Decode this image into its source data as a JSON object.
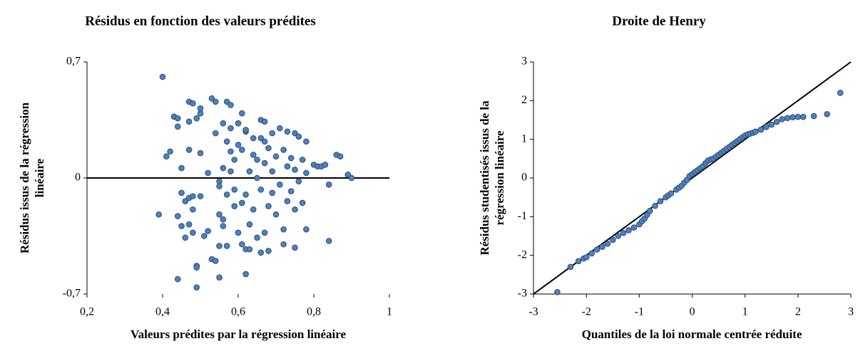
{
  "chart_data": [
    {
      "type": "scatter",
      "title": "Résidus en fonction des valeurs prédites",
      "xlabel": "Valeurs prédites par la régression linéaire",
      "ylabel": "Résidus issus de la régression linéaire",
      "color": "#4f81bd",
      "xlim": [
        0.2,
        1
      ],
      "ylim": [
        -0.7,
        0.7
      ],
      "xticks": [
        {
          "value": 0.2,
          "label": "0,2"
        },
        {
          "value": 0.4,
          "label": "0,4"
        },
        {
          "value": 0.6,
          "label": "0,6"
        },
        {
          "value": 0.8,
          "label": "0,8"
        },
        1
      ],
      "yticks": [
        {
          "value": -0.7,
          "label": "-0,7"
        },
        0,
        {
          "value": 0.7,
          "label": "0,7"
        }
      ],
      "x": [
        0.4,
        0.39,
        0.41,
        0.42,
        0.43,
        0.44,
        0.44,
        0.45,
        0.45,
        0.44,
        0.45,
        0.46,
        0.46,
        0.47,
        0.47,
        0.47,
        0.47,
        0.47,
        0.48,
        0.48,
        0.48,
        0.48,
        0.49,
        0.49,
        0.49,
        0.49,
        0.44,
        0.5,
        0.5,
        0.5,
        0.5,
        0.51,
        0.52,
        0.52,
        0.53,
        0.53,
        0.54,
        0.54,
        0.54,
        0.55,
        0.55,
        0.55,
        0.55,
        0.55,
        0.56,
        0.56,
        0.56,
        0.56,
        0.57,
        0.57,
        0.57,
        0.57,
        0.58,
        0.58,
        0.58,
        0.58,
        0.59,
        0.59,
        0.59,
        0.6,
        0.6,
        0.6,
        0.61,
        0.61,
        0.61,
        0.61,
        0.62,
        0.62,
        0.62,
        0.62,
        0.62,
        0.63,
        0.63,
        0.63,
        0.64,
        0.64,
        0.64,
        0.65,
        0.65,
        0.65,
        0.66,
        0.66,
        0.66,
        0.66,
        0.67,
        0.67,
        0.67,
        0.67,
        0.68,
        0.68,
        0.68,
        0.69,
        0.69,
        0.69,
        0.7,
        0.7,
        0.71,
        0.71,
        0.72,
        0.72,
        0.72,
        0.73,
        0.73,
        0.73,
        0.74,
        0.74,
        0.75,
        0.75,
        0.75,
        0.75,
        0.76,
        0.76,
        0.77,
        0.77,
        0.78,
        0.78,
        0.78,
        0.8,
        0.81,
        0.82,
        0.83,
        0.84,
        0.84,
        0.86,
        0.87,
        0.89,
        0.9
      ],
      "values": [
        0.61,
        -0.22,
        0.13,
        0.16,
        0.37,
        0.36,
        0.31,
        0.06,
        -0.09,
        -0.23,
        -0.29,
        -0.14,
        -0.36,
        0.46,
        0.17,
        0.34,
        -0.12,
        -0.28,
        0.45,
        -0.11,
        -0.19,
        -0.33,
        0.36,
        -0.53,
        -0.54,
        -0.66,
        -0.61,
        0.39,
        0.42,
        0.15,
        -0.11,
        -0.35,
        -0.32,
        0.03,
        0.48,
        -0.49,
        -0.5,
        0.27,
        0.46,
        -0.02,
        -0.6,
        -0.22,
        -0.41,
        -0.05,
        0.33,
        0.06,
        -0.29,
        -0.25,
        0.46,
        0.22,
        -0.1,
        -0.41,
        0.44,
        0.16,
        0.3,
        0.04,
        -0.07,
        -0.17,
        0.11,
        0.33,
        0.2,
        -0.33,
        0.39,
        0.17,
        -0.15,
        -0.4,
        0.28,
        0.29,
        -0.1,
        -0.58,
        -0.43,
        0.04,
        -0.28,
        -0.43,
        0.24,
        0.14,
        -0.19,
        0.0,
        0.11,
        -0.36,
        0.35,
        0.24,
        -0.07,
        -0.45,
        0.34,
        0.22,
        0.09,
        -0.33,
        0.18,
        -0.17,
        -0.44,
        0.27,
        0.04,
        -0.09,
        0.13,
        -0.22,
        0.3,
        -0.04,
        0.17,
        -0.31,
        -0.4,
        0.28,
        0.07,
        -0.14,
        0.12,
        -0.08,
        0.27,
        0.05,
        -0.19,
        -0.42,
        0.25,
        -0.02,
        0.11,
        -0.15,
        0.22,
        0.03,
        -0.31,
        0.08,
        0.07,
        0.07,
        0.08,
        -0.04,
        -0.38,
        0.14,
        0.13,
        0.02,
        0.0
      ]
    },
    {
      "type": "scatter",
      "title": "Droite de Henry",
      "xlabel": "Quantiles de la loi normale centrée réduite",
      "ylabel": "Résidus studentisés issus de la régression linéaire",
      "color": "#4f81bd",
      "xlim": [
        -3,
        3
      ],
      "ylim": [
        -3,
        3
      ],
      "xticks": [
        -3,
        -2,
        -1,
        0,
        1,
        2,
        3
      ],
      "yticks": [
        -3,
        -2,
        -1,
        0,
        1,
        2,
        3
      ],
      "x": [
        -2.55,
        -2.3,
        -2.15,
        -2.05,
        -2.0,
        -1.9,
        -1.8,
        -1.7,
        -1.6,
        -1.5,
        -1.4,
        -1.3,
        -1.2,
        -1.1,
        -1.0,
        -0.95,
        -0.9,
        -0.85,
        -0.8,
        -0.7,
        -0.6,
        -0.5,
        -0.45,
        -0.4,
        -0.3,
        -0.25,
        -0.2,
        -0.15,
        -0.1,
        -0.05,
        0.0,
        0.05,
        0.1,
        0.15,
        0.2,
        0.25,
        0.3,
        0.35,
        0.4,
        0.45,
        0.5,
        0.55,
        0.6,
        0.65,
        0.7,
        0.75,
        0.8,
        0.85,
        0.9,
        0.95,
        1.0,
        1.05,
        1.1,
        1.15,
        1.2,
        1.3,
        1.4,
        1.5,
        1.6,
        1.7,
        1.8,
        1.9,
        2.0,
        2.1,
        2.3,
        2.55,
        2.8
      ],
      "values": [
        -2.95,
        -2.3,
        -2.15,
        -2.08,
        -2.05,
        -1.95,
        -1.85,
        -1.78,
        -1.7,
        -1.6,
        -1.5,
        -1.42,
        -1.35,
        -1.28,
        -1.2,
        -1.12,
        -1.05,
        -0.95,
        -0.85,
        -0.72,
        -0.6,
        -0.5,
        -0.45,
        -0.4,
        -0.3,
        -0.25,
        -0.2,
        -0.12,
        -0.05,
        0.05,
        0.1,
        0.15,
        0.2,
        0.25,
        0.3,
        0.38,
        0.45,
        0.48,
        0.5,
        0.55,
        0.6,
        0.65,
        0.7,
        0.75,
        0.8,
        0.85,
        0.9,
        0.95,
        1.0,
        1.05,
        1.1,
        1.13,
        1.15,
        1.17,
        1.2,
        1.25,
        1.32,
        1.38,
        1.45,
        1.52,
        1.55,
        1.57,
        1.58,
        1.58,
        1.6,
        1.65,
        2.2
      ]
    }
  ]
}
